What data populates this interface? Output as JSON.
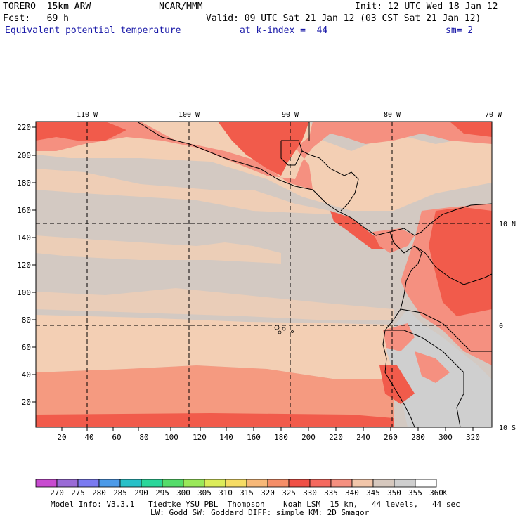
{
  "header": {
    "model": "TORERO  15km ARW",
    "center": "NCAR/MMM",
    "init": "Init: 12 UTC Wed 18 Jan 12",
    "fcst": "Fcst:   69 h",
    "valid": "Valid: 09 UTC Sat 21 Jan 12 (03 CST Sat 21 Jan 12)",
    "field": "Equivalent potential temperature",
    "level": "at k-index =  44",
    "smooth": "sm= 2"
  },
  "map": {
    "lon_labels": [
      "110 W",
      "100 W",
      "90 W",
      "80 W",
      "70 W"
    ],
    "lat_labels": [
      "10 N",
      "0",
      "10 S"
    ],
    "y_ticks": [
      "220",
      "200",
      "180",
      "160",
      "140",
      "120",
      "100",
      "80",
      "60",
      "40",
      "20"
    ],
    "x_ticks": [
      "20",
      "40",
      "60",
      "80",
      "100",
      "120",
      "140",
      "160",
      "180",
      "200",
      "220",
      "240",
      "260",
      "280",
      "300",
      "320"
    ]
  },
  "colorbar": {
    "labels": [
      "270",
      "275",
      "280",
      "285",
      "290",
      "295",
      "300",
      "305",
      "310",
      "315",
      "320",
      "325",
      "330",
      "335",
      "340",
      "345",
      "350",
      "355",
      "360"
    ],
    "unit": "K",
    "colors": [
      "#c84bd0",
      "#9a6bd6",
      "#7a7af0",
      "#4c9ae8",
      "#28c0c8",
      "#2ad69a",
      "#55dc6a",
      "#9ae85a",
      "#dcec5a",
      "#f6dc64",
      "#f7b878",
      "#f58e68",
      "#f05046",
      "#f5695f",
      "#f59080",
      "#f2c6aa",
      "#d6c8be",
      "#cfcfcf",
      "#ffffff"
    ]
  },
  "footer": {
    "line1": "Model Info: V3.3.1   Tiedtke YSU PBL  Thompson    Noah LSM  15 km,   44 levels,   44 sec",
    "line2": "LW: Godd SW: Goddard DIFF: simple KM: 2D Smagor"
  }
}
